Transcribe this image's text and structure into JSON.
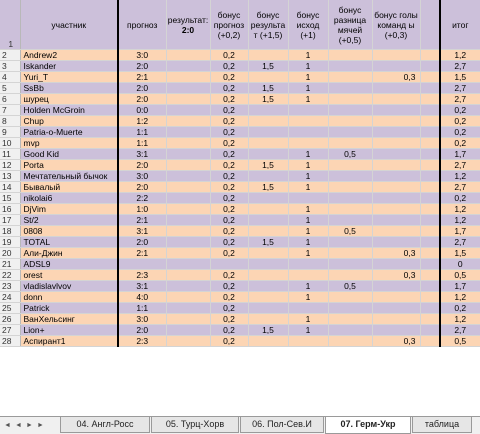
{
  "headers": {
    "row_number": "1",
    "name": "участник",
    "forecast": "прогноз",
    "result": "результат:",
    "result_score": "2:0",
    "bonus_forecast": "бонус прогноз (+0,2)",
    "bonus_result": "бонус результа т (+1,5)",
    "bonus_outcome": "бонус исход (+1)",
    "bonus_diff": "бонус разница мячей (+0,5)",
    "bonus_goals": "бонус голы команд ы (+0,3)",
    "total": "итог"
  },
  "rows": [
    {
      "n": "2",
      "name": "Andrew2",
      "forecast": "3:0",
      "b1": "0,2",
      "b2": "",
      "b3": "1",
      "b4": "",
      "b5": "",
      "total": "1,2"
    },
    {
      "n": "3",
      "name": "Iskander",
      "forecast": "2:0",
      "b1": "0,2",
      "b2": "1,5",
      "b3": "1",
      "b4": "",
      "b5": "",
      "total": "2,7"
    },
    {
      "n": "4",
      "name": "Yuri_T",
      "forecast": "2:1",
      "b1": "0,2",
      "b2": "",
      "b3": "1",
      "b4": "",
      "b5": "0,3",
      "total": "1,5"
    },
    {
      "n": "5",
      "name": "SsBb",
      "forecast": "2:0",
      "b1": "0,2",
      "b2": "1,5",
      "b3": "1",
      "b4": "",
      "b5": "",
      "total": "2,7"
    },
    {
      "n": "6",
      "name": "шурец",
      "forecast": "2:0",
      "b1": "0,2",
      "b2": "1,5",
      "b3": "1",
      "b4": "",
      "b5": "",
      "total": "2,7"
    },
    {
      "n": "7",
      "name": "Holden McGroin",
      "forecast": "0:0",
      "b1": "0,2",
      "b2": "",
      "b3": "",
      "b4": "",
      "b5": "",
      "total": "0,2"
    },
    {
      "n": "8",
      "name": "Chup",
      "forecast": "1:2",
      "b1": "0,2",
      "b2": "",
      "b3": "",
      "b4": "",
      "b5": "",
      "total": "0,2"
    },
    {
      "n": "9",
      "name": "Patria-o-Muerte",
      "forecast": "1:1",
      "b1": "0,2",
      "b2": "",
      "b3": "",
      "b4": "",
      "b5": "",
      "total": "0,2"
    },
    {
      "n": "10",
      "name": "mvp",
      "forecast": "1:1",
      "b1": "0,2",
      "b2": "",
      "b3": "",
      "b4": "",
      "b5": "",
      "total": "0,2"
    },
    {
      "n": "11",
      "name": "Good Kid",
      "forecast": "3:1",
      "b1": "0,2",
      "b2": "",
      "b3": "1",
      "b4": "0,5",
      "b5": "",
      "total": "1,7"
    },
    {
      "n": "12",
      "name": "Porta",
      "forecast": "2:0",
      "b1": "0,2",
      "b2": "1,5",
      "b3": "1",
      "b4": "",
      "b5": "",
      "total": "2,7"
    },
    {
      "n": "13",
      "name": "Мечтательный бычок",
      "forecast": "3:0",
      "b1": "0,2",
      "b2": "",
      "b3": "1",
      "b4": "",
      "b5": "",
      "total": "1,2"
    },
    {
      "n": "14",
      "name": "Бывалый",
      "forecast": "2:0",
      "b1": "0,2",
      "b2": "1,5",
      "b3": "1",
      "b4": "",
      "b5": "",
      "total": "2,7"
    },
    {
      "n": "15",
      "name": "nikolai6",
      "forecast": "2:2",
      "b1": "0,2",
      "b2": "",
      "b3": "",
      "b4": "",
      "b5": "",
      "total": "0,2"
    },
    {
      "n": "16",
      "name": "DjVim",
      "forecast": "1:0",
      "b1": "0,2",
      "b2": "",
      "b3": "1",
      "b4": "",
      "b5": "",
      "total": "1,2"
    },
    {
      "n": "17",
      "name": "St/2",
      "forecast": "2:1",
      "b1": "0,2",
      "b2": "",
      "b3": "1",
      "b4": "",
      "b5": "",
      "total": "1,2"
    },
    {
      "n": "18",
      "name": "0808",
      "forecast": "3:1",
      "b1": "0,2",
      "b2": "",
      "b3": "1",
      "b4": "0,5",
      "b5": "",
      "total": "1,7"
    },
    {
      "n": "19",
      "name": "TOTAL",
      "forecast": "2:0",
      "b1": "0,2",
      "b2": "1,5",
      "b3": "1",
      "b4": "",
      "b5": "",
      "total": "2,7"
    },
    {
      "n": "20",
      "name": "Али-Джин",
      "forecast": "2:1",
      "b1": "0,2",
      "b2": "",
      "b3": "1",
      "b4": "",
      "b5": "0,3",
      "total": "1,5"
    },
    {
      "n": "21",
      "name": "ADSL9",
      "forecast": "",
      "b1": "",
      "b2": "",
      "b3": "",
      "b4": "",
      "b5": "",
      "total": "0"
    },
    {
      "n": "22",
      "name": "orest",
      "forecast": "2:3",
      "b1": "0,2",
      "b2": "",
      "b3": "",
      "b4": "",
      "b5": "0,3",
      "total": "0,5"
    },
    {
      "n": "23",
      "name": "vladislavlvov",
      "forecast": "3:1",
      "b1": "0,2",
      "b2": "",
      "b3": "1",
      "b4": "0,5",
      "b5": "",
      "total": "1,7"
    },
    {
      "n": "24",
      "name": "donn",
      "forecast": "4:0",
      "b1": "0,2",
      "b2": "",
      "b3": "1",
      "b4": "",
      "b5": "",
      "total": "1,2"
    },
    {
      "n": "25",
      "name": "Patrick",
      "forecast": "1:1",
      "b1": "0,2",
      "b2": "",
      "b3": "",
      "b4": "",
      "b5": "",
      "total": "0,2"
    },
    {
      "n": "26",
      "name": "ВанХельсинг",
      "forecast": "3:0",
      "b1": "0,2",
      "b2": "",
      "b3": "1",
      "b4": "",
      "b5": "",
      "total": "1,2"
    },
    {
      "n": "27",
      "name": "Lion+",
      "forecast": "2:0",
      "b1": "0,2",
      "b2": "1,5",
      "b3": "1",
      "b4": "",
      "b5": "",
      "total": "2,7"
    },
    {
      "n": "28",
      "name": "Аспирант1",
      "forecast": "2:3",
      "b1": "0,2",
      "b2": "",
      "b3": "",
      "b4": "",
      "b5": "0,3",
      "total": "0,5"
    }
  ],
  "tabs": {
    "nav_first": "◄",
    "nav_prev": "◄",
    "nav_next": "►",
    "nav_last": "►",
    "items": [
      "04. Англ-Росс",
      "05. Турц-Хорв",
      "06. Пол-Сев.И",
      "07. Герм-Укр",
      "таблица"
    ],
    "active_index": 3
  },
  "colors": {
    "row_odd": "#fcd5b4",
    "row_even": "#ccc0da",
    "header_bg": "#ccc0da"
  }
}
